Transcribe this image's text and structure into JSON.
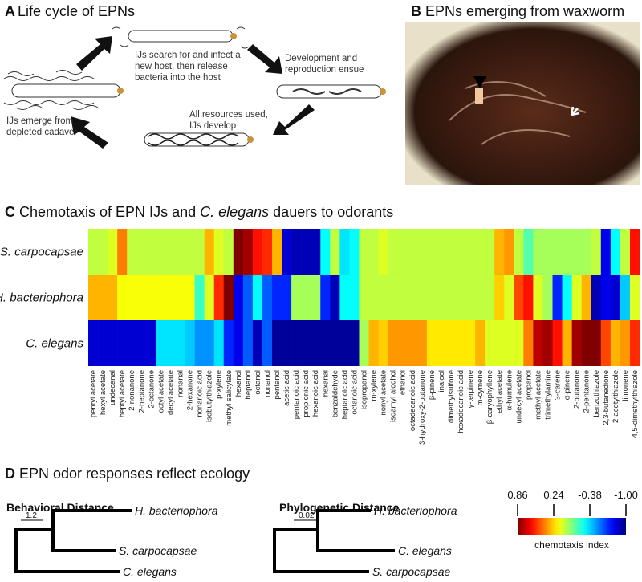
{
  "panel_a": {
    "label": "A",
    "title": "Life cycle of EPNs",
    "captions": [
      [
        "IJs search for and infect a",
        "new host, then release",
        "bacteria into the host"
      ],
      [
        "Development and",
        "reproduction ensue"
      ],
      [
        "All resources used,",
        "IJs develop"
      ],
      [
        "IJs emerge from",
        "depleted cadaver"
      ]
    ]
  },
  "panel_b": {
    "label": "B",
    "title": "EPNs emerging from waxworm"
  },
  "chart_data": {
    "type": "heatmap",
    "label": "C",
    "title": [
      "Chemotaxis of EPN IJs and ",
      "C. elegans",
      " dauers to odorants"
    ],
    "categories": [
      "pentyl acetate",
      "hexyl acetate",
      "undecanal",
      "heptyl acetate",
      "2-nonanone",
      "2-heptanone",
      "2-octanone",
      "octyl acetate",
      "decyl acetate",
      "nonanal",
      "2-hexanone",
      "nonanoic acid",
      "isobutylthiazole",
      "p-xylene",
      "methyl salicylate",
      "hexanol",
      "heptanol",
      "octanol",
      "nonanol",
      "pentanol",
      "acetic acid",
      "pentanoic acid",
      "propionic acid",
      "hexanoic acid",
      "hexanal",
      "benzaldehyde",
      "heptanoic acid",
      "octanoic acid",
      "isopropanol",
      "m-xylene",
      "nonyl acetate",
      "isoamyl alcohol",
      "ethanol",
      "octadecanoic acid",
      "3-hydroxy-2-butanone",
      "β-pinene",
      "linalool",
      "dimethylsulfone",
      "hexadecanoic acid",
      "γ-terpinene",
      "m-cymene",
      "β-caryophyllene",
      "ethyl acetate",
      "α-humulene",
      "undecyl acetate",
      "propanol",
      "methyl acetate",
      "trimethylamine",
      "3-carene",
      "α-pinene",
      "2-butanone",
      "2-pentanone",
      "benzothiazole",
      "2,3-butanedione",
      "2-acetylthiazole",
      "limonene",
      "4,5-dimethylthiazole"
    ],
    "series": [
      {
        "name": "S. carpocapsae",
        "values": [
          0.05,
          0.05,
          0.1,
          0.4,
          0.05,
          0.05,
          0.05,
          0.05,
          0.05,
          0.05,
          0.05,
          0.05,
          0.3,
          0.1,
          0.05,
          0.86,
          0.8,
          0.6,
          0.55,
          0.3,
          -0.85,
          -0.9,
          -0.9,
          -0.9,
          -0.3,
          0.05,
          -0.35,
          -0.3,
          0.05,
          0.05,
          0.1,
          0.05,
          0.05,
          0.05,
          0.05,
          0.05,
          0.05,
          0.05,
          0.05,
          0.05,
          0.05,
          0.05,
          0.3,
          0.35,
          0.05,
          -0.15,
          0,
          0,
          0,
          0,
          0,
          0,
          0.05,
          -0.8,
          -0.3,
          0.05,
          0.6
        ]
      },
      {
        "name": "H. bacteriophora",
        "values": [
          0.3,
          0.3,
          0.3,
          0.15,
          0.15,
          0.15,
          0.15,
          0.15,
          0.15,
          0.15,
          0.15,
          -0.2,
          0.1,
          0.55,
          0.86,
          -0.8,
          -0.6,
          -0.3,
          -0.6,
          -0.7,
          -0.7,
          0,
          0,
          0,
          -0.7,
          -0.9,
          -0.3,
          -0.3,
          0.05,
          0.05,
          0.05,
          0.05,
          0.05,
          0.05,
          0.05,
          0.05,
          0.05,
          0.05,
          0.05,
          0.05,
          0.05,
          0.05,
          0.25,
          0.1,
          0.5,
          0.6,
          0.1,
          0,
          -0.7,
          -0.3,
          0.1,
          0.3,
          -0.9,
          -0.8,
          -0.85,
          -0.4,
          0.1
        ]
      },
      {
        "name": "C. elegans",
        "values": [
          -0.85,
          -0.85,
          -0.85,
          -0.85,
          -0.85,
          -0.85,
          -0.85,
          -0.35,
          -0.35,
          -0.35,
          -0.4,
          -0.5,
          -0.5,
          -0.35,
          -0.7,
          -0.8,
          -0.6,
          -0.9,
          -0.6,
          -0.95,
          -0.95,
          -0.95,
          -0.95,
          -0.95,
          -0.95,
          -0.95,
          -0.95,
          -0.95,
          0,
          0.3,
          0.25,
          0.35,
          0.35,
          0.35,
          0.35,
          0.2,
          0.2,
          0.2,
          0.2,
          0.2,
          0.3,
          0.1,
          0.1,
          0.1,
          0.1,
          0.4,
          0.75,
          0.8,
          0.6,
          0.3,
          0.8,
          0.86,
          0.86,
          0.5,
          0.3,
          0.35,
          0.55
        ]
      }
    ],
    "zlim": [
      -1,
      0.86
    ],
    "colorbar": {
      "label": "chemotaxis index",
      "ticks": [
        0.86,
        0.24,
        -0.38,
        {
          "value": -1,
          "label": "-1.00"
        }
      ]
    }
  },
  "panel_d": {
    "label": "D",
    "title": "EPN odor responses reflect ecology",
    "trees": [
      {
        "title": "Behavioral Distance",
        "scale": "1.2",
        "leaves": [
          "H. bacteriophora",
          "S. carpocapsae",
          "C. elegans"
        ]
      },
      {
        "title": "Phylogenetic Distance",
        "scale": "0.02",
        "leaves": [
          "H. bacteriophora",
          "C. elegans",
          "S. carpocapsae"
        ]
      }
    ]
  }
}
